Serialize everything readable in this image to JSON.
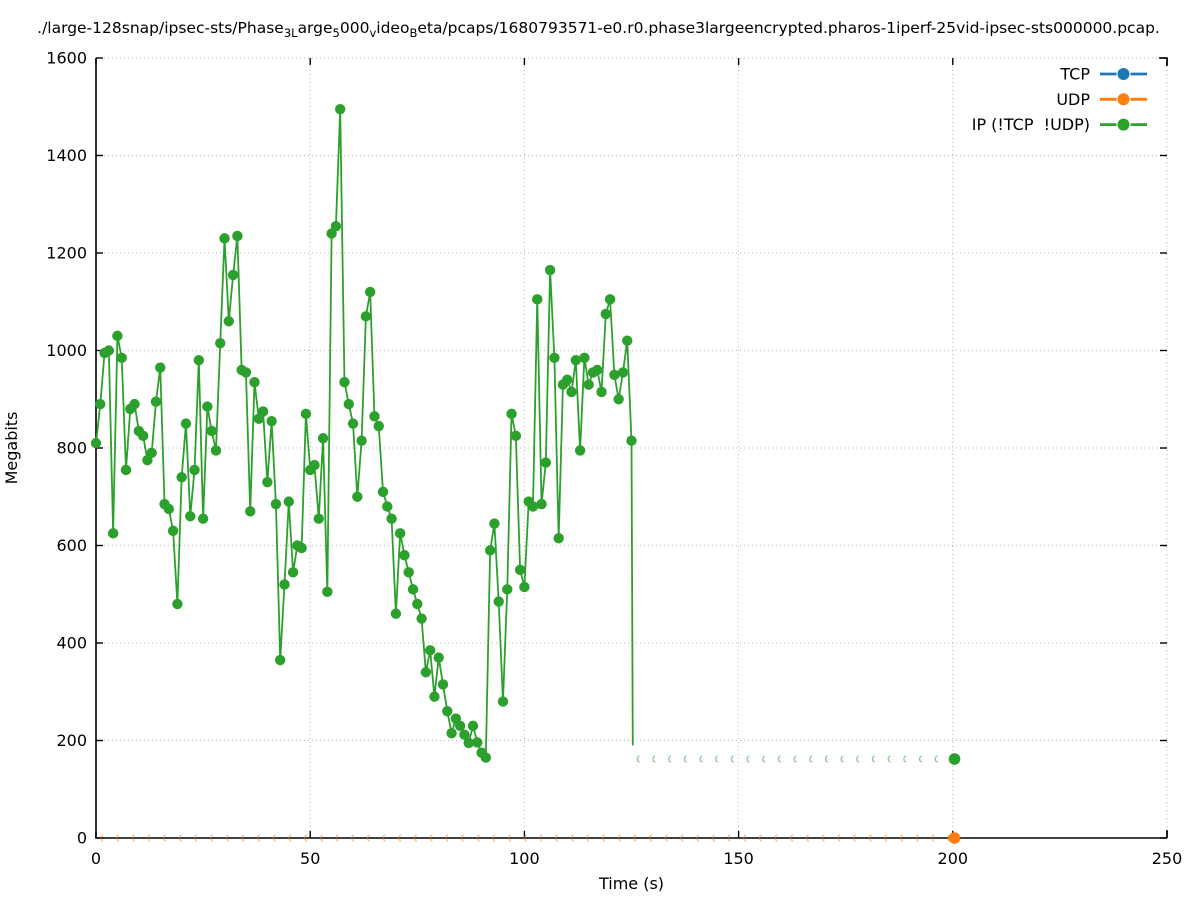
{
  "title": {
    "text": "./large-128snap/ipsec-sts/Phase3Large5000videoBeta/pcaps/1680793571-e0.r0.phase3largeencrypted.pharos-1iperf-25vid-ipsec-sts000000.pcap.",
    "segments": [
      {
        "text": "./large-128snap/ipsec-sts/Phase",
        "sub": false
      },
      {
        "text": "3",
        "sub": true
      },
      {
        "text": "L",
        "sub": true
      },
      {
        "text": "arge",
        "sub": false
      },
      {
        "text": "5",
        "sub": true
      },
      {
        "text": "000",
        "sub": false
      },
      {
        "text": "v",
        "sub": true
      },
      {
        "text": "ideo",
        "sub": false
      },
      {
        "text": "B",
        "sub": true
      },
      {
        "text": "eta/pcaps/1680793571-e0.r0.phase3largeencrypted.pharos-1iperf-25vid-ipsec-sts000000.pcap.",
        "sub": false
      }
    ]
  },
  "legend": {
    "items": [
      {
        "label": "TCP",
        "color": "#1f77b4"
      },
      {
        "label": "UDP",
        "color": "#ff7f0e"
      },
      {
        "label": "IP (!TCP  !UDP)",
        "color": "#2ca02c"
      }
    ]
  },
  "colors": {
    "tcp": "#1f77b4",
    "udp": "#ff7f0e",
    "ip": "#2ca02c",
    "grid": "#b5b5b5",
    "axis": "#000000"
  },
  "chart_data": {
    "type": "line",
    "xlabel": "Time (s)",
    "ylabel": "Megabits",
    "xlim": [
      0,
      250
    ],
    "ylim": [
      0,
      1600
    ],
    "xticks": [
      0,
      50,
      100,
      150,
      200,
      250
    ],
    "yticks": [
      0,
      200,
      400,
      600,
      800,
      1000,
      1200,
      1400,
      1600
    ],
    "grid": true,
    "legend_position": "top-right",
    "series": [
      {
        "name": "TCP",
        "color": "#1f77b4",
        "style": "line-points",
        "points": []
      },
      {
        "name": "UDP",
        "color": "#ff7f0e",
        "style": "sparse-marks",
        "mark_y": 0,
        "mark_t_start": 1.3,
        "mark_t_end": 199.3,
        "mark_interval": 3.66,
        "end_point": {
          "x": 200.4,
          "y": 0
        }
      },
      {
        "name": "IP (!TCP  !UDP)",
        "color": "#2ca02c",
        "style": "line-points",
        "x_start": 0,
        "x_step": 1,
        "values": [
          810,
          890,
          995,
          1000,
          625,
          1030,
          985,
          755,
          880,
          890,
          835,
          825,
          775,
          790,
          895,
          965,
          685,
          675,
          630,
          480,
          740,
          850,
          660,
          755,
          980,
          655,
          885,
          835,
          795,
          1015,
          1230,
          1060,
          1155,
          1235,
          960,
          955,
          670,
          935,
          860,
          875,
          730,
          855,
          685,
          365,
          520,
          690,
          545,
          600,
          595,
          870,
          755,
          765,
          655,
          820,
          505,
          1240,
          1255,
          1495,
          935,
          890,
          850,
          700,
          815,
          1070,
          1120,
          865,
          845,
          710,
          680,
          655,
          460,
          625,
          580,
          545,
          510,
          480,
          450,
          340,
          385,
          290,
          370,
          315,
          260,
          215,
          245,
          230,
          212,
          195,
          230,
          196,
          175,
          165,
          590,
          645,
          485,
          280,
          510,
          870,
          825,
          550,
          515,
          690,
          680,
          1105,
          685,
          770,
          1165,
          985,
          615,
          930,
          940,
          915,
          980,
          795,
          985,
          930,
          955,
          960,
          915,
          1075,
          1105,
          950,
          900,
          955,
          1020,
          815
        ],
        "tail": {
          "drop_to_y": 190,
          "dash_y": 162,
          "dash_t_start": 126.5,
          "dash_t_end": 198.9,
          "dash_interval": 3.66,
          "end_point": {
            "x": 200.4,
            "y": 162
          }
        }
      }
    ]
  }
}
